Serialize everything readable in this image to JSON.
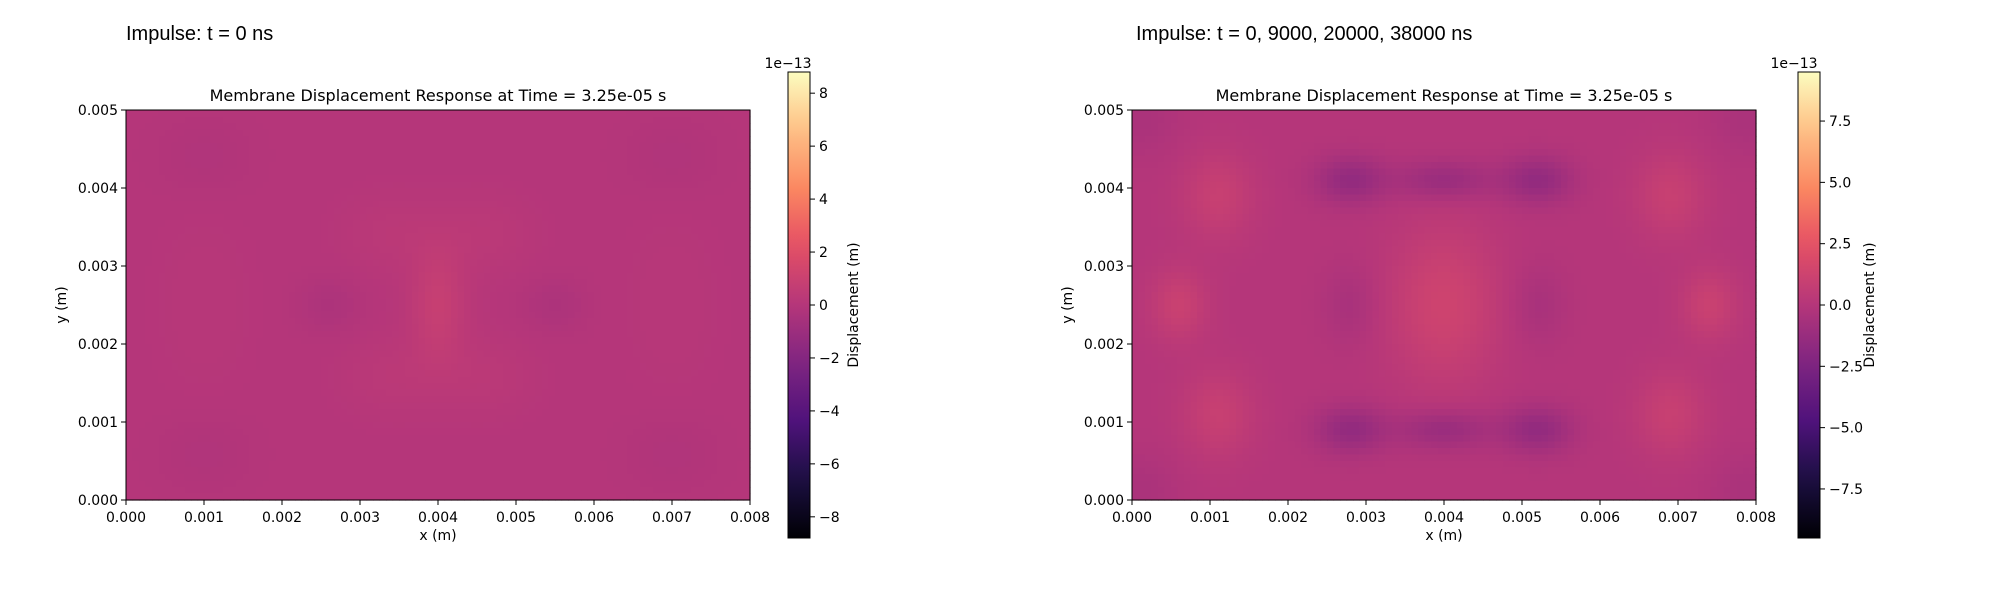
{
  "chart_data": [
    {
      "type": "heatmap",
      "panel_title": "Impulse: t = 0 ns",
      "title": "Membrane Displacement Response at Time = 3.25e-05 s",
      "xlabel": "x (m)",
      "ylabel": "y (m)",
      "xlim": [
        0,
        0.008
      ],
      "ylim": [
        0,
        0.005
      ],
      "x_ticks": [
        "0.000",
        "0.001",
        "0.002",
        "0.003",
        "0.004",
        "0.005",
        "0.006",
        "0.007",
        "0.008"
      ],
      "y_ticks": [
        "0.000",
        "0.001",
        "0.002",
        "0.003",
        "0.004",
        "0.005"
      ],
      "colormap": "magma",
      "colorbar": {
        "label": "Displacement (m)",
        "offset": "1e−13",
        "range": [
          -8.8,
          8.8
        ],
        "ticks": [
          "−8",
          "−6",
          "−4",
          "−2",
          "0",
          "2",
          "4",
          "6",
          "8"
        ],
        "tick_values": [
          -8,
          -6,
          -4,
          -2,
          0,
          2,
          4,
          6,
          8
        ]
      },
      "pattern": "single",
      "amplitude": 0.7
    },
    {
      "type": "heatmap",
      "panel_title": "Impulse: t = 0, 9000, 20000, 38000 ns",
      "title": "Membrane Displacement Response at Time = 3.25e-05 s",
      "xlabel": "x (m)",
      "ylabel": "y (m)",
      "xlim": [
        0,
        0.008
      ],
      "ylim": [
        0,
        0.005
      ],
      "x_ticks": [
        "0.000",
        "0.001",
        "0.002",
        "0.003",
        "0.004",
        "0.005",
        "0.006",
        "0.007",
        "0.008"
      ],
      "y_ticks": [
        "0.000",
        "0.001",
        "0.002",
        "0.003",
        "0.004",
        "0.005"
      ],
      "colormap": "magma",
      "colorbar": {
        "label": "Displacement (m)",
        "offset": "1e−13",
        "range": [
          -9.5,
          9.5
        ],
        "ticks": [
          "−7.5",
          "−5.0",
          "−2.5",
          "0.0",
          "2.5",
          "5.0",
          "7.5"
        ],
        "tick_values": [
          -7.5,
          -5.0,
          -2.5,
          0.0,
          2.5,
          5.0,
          7.5
        ]
      },
      "pattern": "multi",
      "amplitude": 1.6
    }
  ]
}
